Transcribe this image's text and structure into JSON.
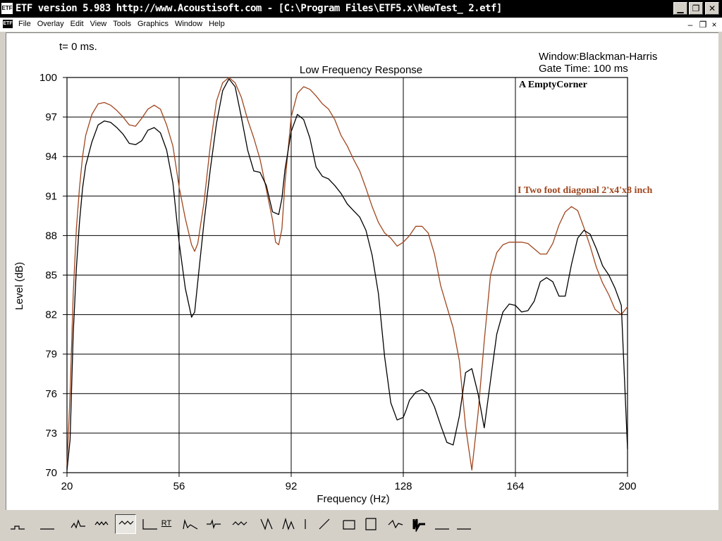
{
  "window": {
    "title": "ETF version 5.983 http://www.Acoustisoft.com - [C:\\Program Files\\ETF5.x\\NewTest_ 2.etf]",
    "icon_label": "ETF",
    "controls": [
      "minimize-icon",
      "maximize-icon",
      "close-icon"
    ]
  },
  "menubar": {
    "icon_label": "ETF",
    "items": [
      "File",
      "Overlay",
      "Edit",
      "View",
      "Tools",
      "Graphics",
      "Window",
      "Help"
    ],
    "mdi_controls": [
      "minimize-icon",
      "restore-icon",
      "close-icon"
    ]
  },
  "plot": {
    "time_label": "t= 0 ms.",
    "window_label": "Window:Blackman-Harris",
    "gate_label": "Gate Time: 100 ms"
  },
  "colors": {
    "series_a": "#000000",
    "series_i": "#a0461e",
    "grid": "#000000"
  },
  "chart_data": {
    "type": "line",
    "title": "Low Frequency Response",
    "xlabel": "Frequency (Hz)",
    "ylabel": "Level (dB)",
    "xlim": [
      20,
      200
    ],
    "ylim": [
      70,
      100
    ],
    "x_ticks": [
      "20",
      "56",
      "92",
      "128",
      "164",
      "200"
    ],
    "y_ticks": [
      "100",
      "97",
      "94",
      "91",
      "88",
      "85",
      "82",
      "79",
      "76",
      "73",
      "70"
    ],
    "grid": true,
    "legend": "top-right (inline labels)",
    "series": [
      {
        "name": "A EmptyCorner",
        "color": "#000000",
        "x": [
          20,
          21,
          22,
          23,
          24,
          25,
          26,
          28,
          30,
          32,
          34,
          36,
          38,
          40,
          42,
          44,
          46,
          48,
          50,
          52,
          54,
          56,
          58,
          60,
          61,
          62,
          64,
          66,
          68,
          70,
          72,
          74,
          76,
          78,
          80,
          82,
          84,
          86,
          88,
          89,
          90,
          92,
          94,
          96,
          98,
          100,
          102,
          104,
          106,
          108,
          110,
          112,
          114,
          116,
          118,
          120,
          122,
          124,
          126,
          128,
          129,
          130,
          132,
          134,
          136,
          138,
          140,
          142,
          144,
          146,
          148,
          150,
          152,
          154,
          156,
          158,
          160,
          162,
          164,
          166,
          168,
          170,
          172,
          174,
          176,
          178,
          180,
          182,
          184,
          186,
          188,
          190,
          192,
          194,
          196,
          198,
          200
        ],
        "y": [
          70.2,
          72.5,
          80.5,
          85.5,
          89.0,
          91.6,
          93.3,
          95.1,
          96.4,
          96.7,
          96.6,
          96.2,
          95.7,
          95.0,
          94.9,
          95.2,
          96.0,
          96.2,
          95.8,
          94.5,
          92.0,
          87.5,
          84.0,
          81.8,
          82.2,
          84.5,
          89.0,
          93.0,
          96.5,
          99.0,
          99.9,
          99.3,
          97.0,
          94.5,
          92.9,
          92.8,
          91.8,
          89.8,
          89.6,
          90.8,
          93.0,
          95.9,
          97.2,
          96.8,
          95.4,
          93.2,
          92.5,
          92.3,
          91.8,
          91.2,
          90.4,
          89.9,
          89.4,
          88.4,
          86.5,
          83.6,
          78.8,
          75.3,
          74.0,
          74.2,
          74.8,
          75.5,
          76.1,
          76.3,
          76.0,
          75.0,
          73.6,
          72.3,
          72.1,
          74.3,
          77.6,
          77.9,
          76.0,
          73.4,
          77.0,
          80.5,
          82.2,
          82.8,
          82.7,
          82.2,
          82.3,
          83.0,
          84.5,
          84.8,
          84.5,
          83.4,
          83.4,
          85.8,
          87.8,
          88.4,
          88.1,
          87.0,
          85.7,
          85.0,
          84.0,
          82.7,
          71.8
        ]
      },
      {
        "name": "I Two foot diagonal 2'x4'x8 inch",
        "color": "#a0461e",
        "x": [
          20,
          21,
          22,
          23,
          24,
          25,
          26,
          28,
          30,
          32,
          34,
          36,
          38,
          40,
          42,
          44,
          46,
          48,
          50,
          52,
          54,
          56,
          58,
          60,
          61,
          62,
          64,
          66,
          68,
          70,
          72,
          74,
          76,
          78,
          80,
          82,
          84,
          86,
          87,
          88,
          89,
          90,
          92,
          94,
          96,
          98,
          100,
          102,
          104,
          106,
          108,
          110,
          112,
          114,
          116,
          118,
          120,
          122,
          124,
          126,
          128,
          130,
          132,
          134,
          136,
          138,
          140,
          142,
          144,
          146,
          148,
          150,
          152,
          154,
          156,
          158,
          160,
          162,
          164,
          166,
          168,
          170,
          172,
          174,
          176,
          178,
          180,
          182,
          184,
          186,
          188,
          190,
          192,
          194,
          196,
          198,
          200
        ],
        "y": [
          70.5,
          76.0,
          83.5,
          88.5,
          91.6,
          94.0,
          95.6,
          97.2,
          98.0,
          98.1,
          97.9,
          97.5,
          97.0,
          96.4,
          96.3,
          96.9,
          97.6,
          97.9,
          97.6,
          96.4,
          94.8,
          91.7,
          89.3,
          87.3,
          86.8,
          87.4,
          90.5,
          94.8,
          98.2,
          99.6,
          100.0,
          99.6,
          98.5,
          96.8,
          95.4,
          93.8,
          91.5,
          89.2,
          87.5,
          87.3,
          88.5,
          92.0,
          97.0,
          98.8,
          99.3,
          99.1,
          98.6,
          98.0,
          97.6,
          96.8,
          95.6,
          94.8,
          93.8,
          92.9,
          91.6,
          90.2,
          89.0,
          88.2,
          87.8,
          87.2,
          87.5,
          88.0,
          88.7,
          88.7,
          88.2,
          86.6,
          84.2,
          82.6,
          81.0,
          78.5,
          73.5,
          70.2,
          74.5,
          80.0,
          85.0,
          86.7,
          87.3,
          87.5,
          87.5,
          87.5,
          87.4,
          87.0,
          86.6,
          86.6,
          87.4,
          88.8,
          89.8,
          90.2,
          89.9,
          88.6,
          87.2,
          85.6,
          84.4,
          83.5,
          82.4,
          82.0,
          82.6
        ]
      }
    ]
  },
  "toolbar": {
    "rt_label": "RT",
    "tools": [
      "tool-1",
      "tool-2",
      "tool-3",
      "tool-4",
      "tool-5",
      "tool-6",
      "tool-7",
      "tool-8",
      "tool-9",
      "tool-10",
      "tool-11",
      "tool-12",
      "tool-13",
      "tool-14",
      "tool-15",
      "tool-16",
      "tool-17",
      "tool-18",
      "tool-19",
      "tool-20"
    ]
  }
}
